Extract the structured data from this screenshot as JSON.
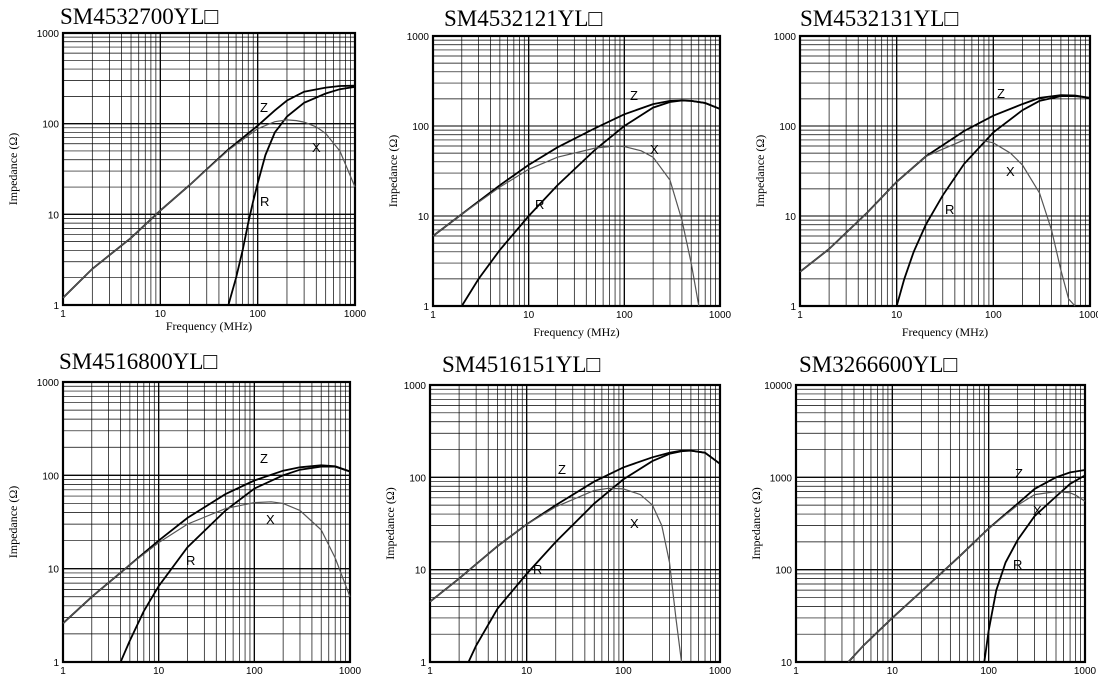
{
  "chart_data": [
    {
      "type": "line",
      "title": "SM4532700YL□",
      "xlabel": "Frequency (MHz)",
      "ylabel": "Impedance (Ω)",
      "x_scale": "log",
      "y_scale": "log",
      "xlim": [
        1,
        1000
      ],
      "ylim": [
        1,
        1000
      ],
      "x_ticks": [
        "1",
        "10",
        "100",
        "1000"
      ],
      "y_ticks": [
        "1",
        "10",
        "100",
        "1000"
      ],
      "grid": true,
      "series": [
        {
          "name": "Z",
          "color": "#000000",
          "x": [
            1,
            2,
            5,
            10,
            20,
            50,
            100,
            150,
            200,
            300,
            500,
            700,
            1000
          ],
          "y": [
            1.2,
            2.5,
            5.5,
            11,
            21,
            52,
            95,
            140,
            180,
            225,
            250,
            260,
            262
          ]
        },
        {
          "name": "R",
          "color": "#000000",
          "x": [
            50,
            60,
            70,
            80,
            90,
            100,
            120,
            150,
            200,
            300,
            500,
            700,
            1000
          ],
          "y": [
            1,
            2,
            4,
            8,
            14,
            22,
            45,
            80,
            120,
            170,
            215,
            240,
            255
          ]
        },
        {
          "name": "X",
          "color": "#555555",
          "x": [
            1,
            2,
            5,
            10,
            20,
            50,
            100,
            150,
            200,
            250,
            300,
            400,
            500,
            700,
            1000
          ],
          "y": [
            1.2,
            2.5,
            5.5,
            11,
            21,
            51,
            88,
            105,
            110,
            108,
            104,
            92,
            78,
            50,
            20
          ]
        }
      ]
    },
    {
      "type": "line",
      "title": "SM4532121YL□",
      "xlabel": "Frequency (MHz)",
      "ylabel": "Impedance (Ω)",
      "x_scale": "log",
      "y_scale": "log",
      "xlim": [
        1,
        1000
      ],
      "ylim": [
        1,
        1000
      ],
      "x_ticks": [
        "1",
        "10",
        "100",
        "1000"
      ],
      "y_ticks": [
        "1",
        "10",
        "100",
        "1000"
      ],
      "grid": true,
      "series": [
        {
          "name": "Z",
          "color": "#000000",
          "x": [
            1,
            2,
            5,
            10,
            20,
            50,
            100,
            200,
            300,
            400,
            500,
            700,
            1000
          ],
          "y": [
            6,
            10.5,
            22,
            37,
            58,
            95,
            135,
            175,
            190,
            192,
            190,
            180,
            155
          ]
        },
        {
          "name": "R",
          "color": "#000000",
          "x": [
            2,
            3,
            5,
            10,
            20,
            50,
            100,
            200,
            300,
            400,
            500,
            700,
            1000
          ],
          "y": [
            1,
            2,
            4.2,
            10,
            22,
            55,
            100,
            160,
            185,
            192,
            190,
            180,
            155
          ]
        },
        {
          "name": "X",
          "color": "#555555",
          "x": [
            1,
            2,
            5,
            10,
            20,
            50,
            80,
            100,
            150,
            200,
            300,
            400,
            500,
            600
          ],
          "y": [
            6,
            10.5,
            21,
            33,
            45,
            57,
            60,
            59,
            53,
            45,
            25,
            9,
            3,
            1
          ]
        }
      ]
    },
    {
      "type": "line",
      "title": "SM4532131YL□",
      "xlabel": "Frequency (MHz)",
      "ylabel": "Impedance (Ω)",
      "x_scale": "log",
      "y_scale": "log",
      "xlim": [
        1,
        1000
      ],
      "ylim": [
        1,
        1000
      ],
      "x_ticks": [
        "1",
        "10",
        "100",
        "1000"
      ],
      "y_ticks": [
        "1",
        "10",
        "100",
        "1000"
      ],
      "grid": true,
      "series": [
        {
          "name": "Z",
          "color": "#000000",
          "x": [
            1,
            2,
            5,
            10,
            20,
            50,
            100,
            200,
            300,
            500,
            700,
            1000
          ],
          "y": [
            2.4,
            4.3,
            11,
            24,
            46,
            88,
            130,
            175,
            205,
            220,
            218,
            205
          ]
        },
        {
          "name": "R",
          "color": "#000000",
          "x": [
            10,
            12,
            15,
            20,
            30,
            50,
            100,
            200,
            300,
            500,
            700,
            1000
          ],
          "y": [
            1,
            2,
            4,
            8,
            17,
            38,
            85,
            150,
            190,
            215,
            215,
            205
          ]
        },
        {
          "name": "X",
          "color": "#555555",
          "x": [
            1,
            2,
            5,
            10,
            20,
            50,
            70,
            100,
            150,
            200,
            300,
            400,
            500,
            600,
            700
          ],
          "y": [
            2.4,
            4.3,
            11,
            24,
            46,
            70,
            70,
            65,
            50,
            37,
            18,
            7,
            2.5,
            1.2,
            1
          ]
        }
      ]
    },
    {
      "type": "line",
      "title": "SM4516800YL□",
      "xlabel": "",
      "ylabel": "Impedance (Ω)",
      "x_scale": "log",
      "y_scale": "log",
      "xlim": [
        1,
        1000
      ],
      "ylim": [
        1,
        1000
      ],
      "x_ticks": [
        "1",
        "10",
        "100",
        "1000"
      ],
      "y_ticks": [
        "1",
        "10",
        "100",
        "1000"
      ],
      "grid": true,
      "series": [
        {
          "name": "Z",
          "color": "#000000",
          "x": [
            1,
            2,
            5,
            10,
            20,
            50,
            100,
            200,
            300,
            500,
            700,
            1000
          ],
          "y": [
            2.6,
            5,
            11,
            20,
            35,
            63,
            88,
            112,
            122,
            128,
            125,
            110
          ]
        },
        {
          "name": "R",
          "color": "#000000",
          "x": [
            4,
            5,
            7,
            10,
            20,
            50,
            100,
            200,
            300,
            500,
            700,
            1000
          ],
          "y": [
            1,
            1.7,
            3.5,
            6.5,
            17,
            42,
            72,
            100,
            115,
            124,
            124,
            110
          ]
        },
        {
          "name": "X",
          "color": "#555555",
          "x": [
            1,
            2,
            5,
            10,
            20,
            50,
            100,
            150,
            200,
            300,
            500,
            700,
            1000
          ],
          "y": [
            2.6,
            5,
            11,
            19,
            30,
            44,
            51,
            52,
            50,
            42,
            26,
            13,
            5
          ]
        }
      ]
    },
    {
      "type": "line",
      "title": "SM4516151YL□",
      "xlabel": "",
      "ylabel": "Impedance (Ω)",
      "x_scale": "log",
      "y_scale": "log",
      "xlim": [
        1,
        1000
      ],
      "ylim": [
        1,
        1000
      ],
      "x_ticks": [
        "1",
        "10",
        "100",
        "1000"
      ],
      "y_ticks": [
        "1",
        "10",
        "100",
        "1000"
      ],
      "grid": true,
      "series": [
        {
          "name": "Z",
          "color": "#000000",
          "x": [
            1,
            2,
            5,
            10,
            20,
            50,
            100,
            200,
            300,
            400,
            500,
            700,
            1000
          ],
          "y": [
            4.5,
            8,
            18,
            31,
            50,
            90,
            128,
            165,
            185,
            195,
            195,
            185,
            140
          ]
        },
        {
          "name": "R",
          "color": "#000000",
          "x": [
            2.5,
            3,
            5,
            10,
            20,
            50,
            100,
            200,
            300,
            400,
            500,
            700,
            1000
          ],
          "y": [
            1,
            1.5,
            3.8,
            9,
            20,
            52,
            95,
            150,
            180,
            192,
            195,
            185,
            140
          ]
        },
        {
          "name": "X",
          "color": "#555555",
          "x": [
            1,
            2,
            5,
            10,
            20,
            50,
            70,
            100,
            150,
            200,
            250,
            300,
            350,
            400
          ],
          "y": [
            4.5,
            8,
            18,
            31,
            48,
            72,
            76,
            75,
            65,
            50,
            30,
            12,
            3,
            1
          ]
        }
      ]
    },
    {
      "type": "line",
      "title": "SM3266600YL□",
      "xlabel": "",
      "ylabel": "Impedance (Ω)",
      "x_scale": "log",
      "y_scale": "log",
      "xlim": [
        1,
        1000
      ],
      "ylim": [
        10,
        10000
      ],
      "x_ticks": [
        "1",
        "10",
        "100",
        "1000"
      ],
      "y_ticks": [
        "10",
        "100",
        "1000",
        "10000"
      ],
      "grid": true,
      "series": [
        {
          "name": "Z",
          "color": "#000000",
          "x": [
            3.5,
            5,
            10,
            20,
            50,
            100,
            200,
            300,
            500,
            700,
            1000
          ],
          "y": [
            10,
            15,
            30,
            58,
            140,
            280,
            520,
            750,
            1000,
            1130,
            1200
          ]
        },
        {
          "name": "R",
          "color": "#000000",
          "x": [
            90,
            100,
            120,
            150,
            200,
            300,
            500,
            700,
            1000
          ],
          "y": [
            10,
            22,
            60,
            120,
            210,
            380,
            620,
            850,
            1050
          ]
        },
        {
          "name": "X",
          "color": "#555555",
          "x": [
            3.5,
            5,
            10,
            20,
            50,
            100,
            200,
            300,
            500,
            700,
            800,
            1000
          ],
          "y": [
            10,
            15,
            30,
            58,
            140,
            280,
            500,
            650,
            700,
            680,
            640,
            550
          ]
        }
      ]
    }
  ]
}
